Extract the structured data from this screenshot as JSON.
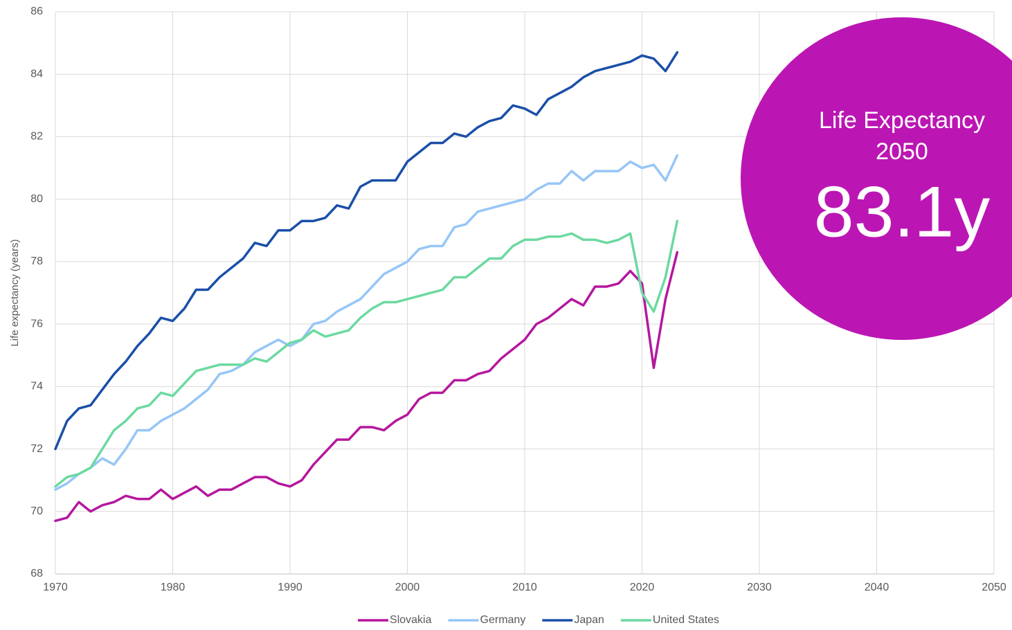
{
  "chart_data": {
    "type": "line",
    "y_label": "Life expectancy (years)",
    "x": [
      1970,
      1971,
      1972,
      1973,
      1974,
      1975,
      1976,
      1977,
      1978,
      1979,
      1980,
      1981,
      1982,
      1983,
      1984,
      1985,
      1986,
      1987,
      1988,
      1989,
      1990,
      1991,
      1992,
      1993,
      1994,
      1995,
      1996,
      1997,
      1998,
      1999,
      2000,
      2001,
      2002,
      2003,
      2004,
      2005,
      2006,
      2007,
      2008,
      2009,
      2010,
      2011,
      2012,
      2013,
      2014,
      2015,
      2016,
      2017,
      2018,
      2019,
      2020,
      2021,
      2022,
      2023
    ],
    "series": [
      {
        "name": "Slovakia",
        "color": "#b5179e",
        "values": [
          69.7,
          69.8,
          70.3,
          70.0,
          70.2,
          70.3,
          70.5,
          70.4,
          70.4,
          70.7,
          70.4,
          70.6,
          70.8,
          70.5,
          70.7,
          70.7,
          70.9,
          71.1,
          71.1,
          70.9,
          70.8,
          71.0,
          71.5,
          71.9,
          72.3,
          72.3,
          72.7,
          72.7,
          72.6,
          72.9,
          73.1,
          73.6,
          73.8,
          73.8,
          74.2,
          74.2,
          74.4,
          74.5,
          74.9,
          75.2,
          75.5,
          76.0,
          76.2,
          76.5,
          76.8,
          76.6,
          77.2,
          77.2,
          77.3,
          77.7,
          77.3,
          74.6,
          76.8,
          78.3
        ]
      },
      {
        "name": "Germany",
        "color": "#96c6f7",
        "values": [
          70.7,
          70.9,
          71.2,
          71.4,
          71.7,
          71.5,
          72.0,
          72.6,
          72.6,
          72.9,
          73.1,
          73.3,
          73.6,
          73.9,
          74.4,
          74.5,
          74.7,
          75.1,
          75.3,
          75.5,
          75.3,
          75.5,
          76.0,
          76.1,
          76.4,
          76.6,
          76.8,
          77.2,
          77.6,
          77.8,
          78.0,
          78.4,
          78.5,
          78.5,
          79.1,
          79.2,
          79.6,
          79.7,
          79.8,
          79.9,
          80.0,
          80.3,
          80.5,
          80.5,
          80.9,
          80.6,
          80.9,
          80.9,
          80.9,
          81.2,
          81.0,
          81.1,
          80.6,
          81.4
        ]
      },
      {
        "name": "Japan",
        "color": "#1a4fa8",
        "values": [
          72.0,
          72.9,
          73.3,
          73.4,
          73.9,
          74.4,
          74.8,
          75.3,
          75.7,
          76.2,
          76.1,
          76.5,
          77.1,
          77.1,
          77.5,
          77.8,
          78.1,
          78.6,
          78.5,
          79.0,
          79.0,
          79.3,
          79.3,
          79.4,
          79.8,
          79.7,
          80.4,
          80.6,
          80.6,
          80.6,
          81.2,
          81.5,
          81.8,
          81.8,
          82.1,
          82.0,
          82.3,
          82.5,
          82.6,
          83.0,
          82.9,
          82.7,
          83.2,
          83.4,
          83.6,
          83.9,
          84.1,
          84.2,
          84.3,
          84.4,
          84.6,
          84.5,
          84.1,
          84.7
        ]
      },
      {
        "name": "United States",
        "color": "#6cd9a0",
        "values": [
          70.8,
          71.1,
          71.2,
          71.4,
          72.0,
          72.6,
          72.9,
          73.3,
          73.4,
          73.8,
          73.7,
          74.1,
          74.5,
          74.6,
          74.7,
          74.7,
          74.7,
          74.9,
          74.8,
          75.1,
          75.4,
          75.5,
          75.8,
          75.6,
          75.7,
          75.8,
          76.2,
          76.5,
          76.7,
          76.7,
          76.8,
          76.9,
          77.0,
          77.1,
          77.5,
          77.5,
          77.8,
          78.1,
          78.1,
          78.5,
          78.7,
          78.7,
          78.8,
          78.8,
          78.9,
          78.7,
          78.7,
          78.6,
          78.7,
          78.9,
          77.0,
          76.4,
          77.5,
          79.3
        ]
      }
    ],
    "xlim": [
      1970,
      2050
    ],
    "xticks": [
      1970,
      1980,
      1990,
      2000,
      2010,
      2020,
      2030,
      2040,
      2050
    ],
    "ylim": [
      68,
      86
    ],
    "yticks": [
      68,
      70,
      72,
      74,
      76,
      78,
      80,
      82,
      84,
      86
    ],
    "grid": true,
    "legend": "bottom",
    "annotation": {
      "title": "Life Expectancy",
      "year": "2050",
      "value": "83.1y",
      "color": "#bb16b3"
    }
  }
}
